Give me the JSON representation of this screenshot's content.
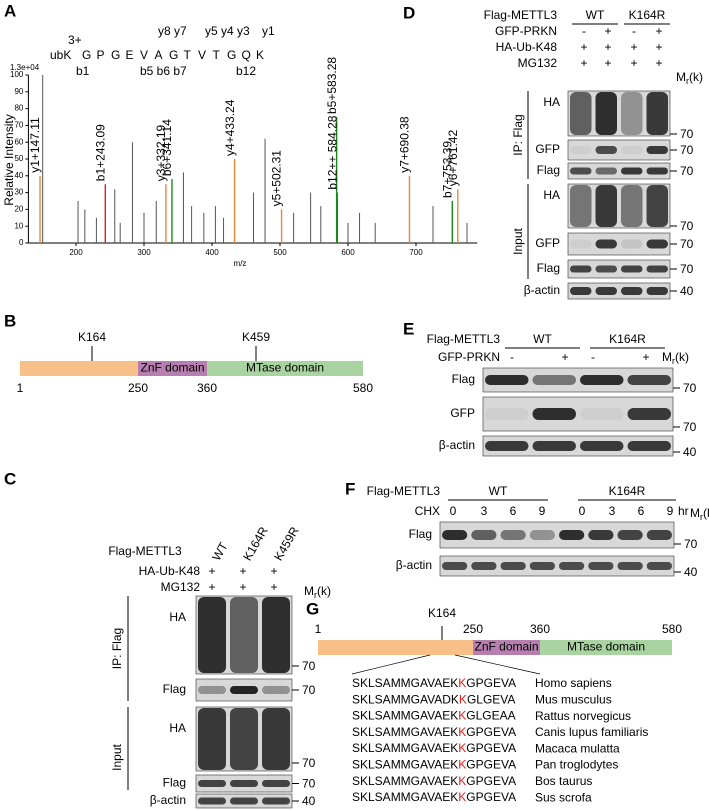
{
  "panel_a": {
    "letter": "A",
    "charge": "3+",
    "residues": [
      "ubK",
      "G",
      "P",
      "G",
      "E",
      "V",
      "A",
      "G",
      "T",
      "V",
      "T",
      "G",
      "Q",
      "K"
    ],
    "y_ions": [
      "y8 y7",
      "y5 y4 y3",
      "y1"
    ],
    "b_ions": [
      "b1",
      "b5 b6 b7",
      "b12"
    ],
    "scale": "1.3e+04",
    "y_axis_label": "Relative Intensity",
    "x_axis_label": "m/z",
    "xlim": [
      130,
      790
    ],
    "ylim": [
      0,
      100
    ],
    "xticks": [
      200,
      300,
      400,
      500,
      600,
      700
    ],
    "yticks": [
      0,
      10,
      20,
      30,
      40,
      50,
      60,
      70,
      80,
      90,
      100
    ],
    "peaks": [
      {
        "label": "y1+147.11",
        "mz": 147.11,
        "intensity": 40,
        "color": "#e8873a"
      },
      {
        "label": "b1+243.09",
        "mz": 243.09,
        "intensity": 35,
        "color": "#e02020"
      },
      {
        "label": "y3+332.19",
        "mz": 332.19,
        "intensity": 35,
        "color": "#e8873a"
      },
      {
        "label": "b6+341.14",
        "mz": 341.14,
        "intensity": 38,
        "color": "#1a8a1a"
      },
      {
        "label": "y4+433.24",
        "mz": 433.24,
        "intensity": 50,
        "color": "#e8873a"
      },
      {
        "label": "y5+502.31",
        "mz": 502.31,
        "intensity": 20,
        "color": "#e8873a"
      },
      {
        "label": "b5+583.28",
        "mz": 583.28,
        "intensity": 75,
        "color": "#1a8a1a"
      },
      {
        "label": "b12++ 584.28",
        "mz": 584.28,
        "intensity": 30,
        "color": "#1a8a1a"
      },
      {
        "label": "y7+690.38",
        "mz": 690.38,
        "intensity": 40,
        "color": "#e8873a"
      },
      {
        "label": "b7+753.39",
        "mz": 753.39,
        "intensity": 25,
        "color": "#1a8a1a"
      },
      {
        "label": "y6+761.42",
        "mz": 761.42,
        "intensity": 32,
        "color": "#e8873a"
      }
    ],
    "background_peaks": {
      "mz": [
        151,
        203,
        213,
        230,
        257,
        265,
        283,
        300,
        318,
        358,
        370,
        388,
        405,
        417,
        461,
        478,
        520,
        545,
        560,
        600,
        617,
        640,
        725,
        775
      ],
      "intensity": [
        100,
        25,
        20,
        15,
        32,
        12,
        60,
        18,
        25,
        42,
        22,
        18,
        22,
        15,
        30,
        62,
        18,
        30,
        22,
        12,
        18,
        12,
        22,
        12
      ],
      "color": "#555555"
    }
  },
  "panel_b": {
    "letter": "B",
    "sites": [
      "K164",
      "K459"
    ],
    "positions": [
      1,
      250,
      360,
      580
    ],
    "domains": [
      "ZnF domain",
      "MTase domain"
    ]
  },
  "panel_c": {
    "letter": "C",
    "construct": "Flag-METTL3",
    "lanes": [
      "WT",
      "K164R",
      "K459R"
    ],
    "conditions": [
      {
        "label": "HA-Ub-K48",
        "signs": [
          "+",
          "+",
          "+"
        ]
      },
      {
        "label": "MG132",
        "signs": [
          "+",
          "+",
          "+"
        ]
      }
    ],
    "mr": [
      "M",
      "r",
      "(k)"
    ],
    "groups": [
      {
        "label": "IP: Flag",
        "blots": [
          {
            "label": "HA",
            "marker": 70
          },
          {
            "label": "Flag",
            "marker": 70
          }
        ]
      },
      {
        "label": "Input",
        "blots": [
          {
            "label": "HA",
            "marker": 70
          },
          {
            "label": "Flag",
            "marker": 70
          },
          {
            "label": "β-actin",
            "marker": 40
          }
        ]
      }
    ]
  },
  "panel_d": {
    "letter": "D",
    "construct": "Flag-METTL3",
    "lane_groups": [
      "WT",
      "K164R"
    ],
    "conditions": [
      {
        "label": "GFP-PRKN",
        "signs": [
          "-",
          "+",
          "-",
          "+"
        ]
      },
      {
        "label": "HA-Ub-K48",
        "signs": [
          "+",
          "+",
          "+",
          "+"
        ]
      },
      {
        "label": "MG132",
        "signs": [
          "+",
          "+",
          "+",
          "+"
        ]
      }
    ],
    "mr": [
      "M",
      "r",
      "(k)"
    ],
    "groups": [
      {
        "label": "IP: Flag",
        "blots": [
          {
            "label": "HA",
            "marker": 70
          },
          {
            "label": "GFP",
            "marker": 70
          },
          {
            "label": "Flag",
            "marker": 70
          }
        ]
      },
      {
        "label": "Input",
        "blots": [
          {
            "label": "HA",
            "marker": 70
          },
          {
            "label": "GFP",
            "marker": 70
          },
          {
            "label": "Flag",
            "marker": 70
          },
          {
            "label": "β-actin",
            "marker": 40
          }
        ]
      }
    ]
  },
  "panel_e": {
    "letter": "E",
    "construct": "Flag-METTL3",
    "lane_groups": [
      "WT",
      "K164R"
    ],
    "conditions": [
      {
        "label": "GFP-PRKN",
        "signs": [
          "-",
          "+",
          "-",
          "+"
        ]
      }
    ],
    "mr": [
      "M",
      "r",
      "(k)"
    ],
    "blots": [
      {
        "label": "Flag",
        "marker": 70
      },
      {
        "label": "GFP",
        "marker": 70
      },
      {
        "label": "β-actin",
        "marker": 40
      }
    ]
  },
  "panel_f": {
    "letter": "F",
    "construct": "Flag-METTL3",
    "lane_groups": [
      "WT",
      "K164R"
    ],
    "conditions": [
      {
        "label": "CHX",
        "signs": [
          0,
          3,
          6,
          9,
          0,
          3,
          6,
          9
        ]
      }
    ],
    "unit": "hr",
    "mr": [
      "M",
      "r",
      "(k)"
    ],
    "blots": [
      {
        "label": "Flag",
        "marker": 70
      },
      {
        "label": "β-actin",
        "marker": 40
      }
    ]
  },
  "panel_g": {
    "letter": "G",
    "site": "K164",
    "positions": [
      1,
      250,
      360,
      580
    ],
    "domains": [
      "ZnF domain",
      "MTase domain"
    ],
    "alignment": [
      {
        "before": "SKLSAMMGAVAEK",
        "site": "K",
        "after": "GPGEVA",
        "species": "Homo sapiens"
      },
      {
        "before": "SKLSAMMGAVADK",
        "site": "K",
        "after": "GLGEVA",
        "species": "Mus musculus"
      },
      {
        "before": "SKLSAMMGAVAEK",
        "site": "K",
        "after": "GLGEAA",
        "species": "Rattus norvegicus"
      },
      {
        "before": "SKLSAMMGAVAEK",
        "site": "K",
        "after": "GPGEVA",
        "species": "Canis lupus familiaris"
      },
      {
        "before": "SKLSAMMGAVAEK",
        "site": "K",
        "after": "GPGEVA",
        "species": "Macaca mulatta"
      },
      {
        "before": "SKLSAMMGAVAEK",
        "site": "K",
        "after": "GPGEVA",
        "species": "Pan troglodytes"
      },
      {
        "before": "SKLSAMMGAVAEK",
        "site": "K",
        "after": "GPGEVA",
        "species": "Bos taurus"
      },
      {
        "before": "SKLSAMMGAVAEK",
        "site": "K",
        "after": "GPGEVA",
        "species": "Sus scrofa"
      }
    ]
  }
}
